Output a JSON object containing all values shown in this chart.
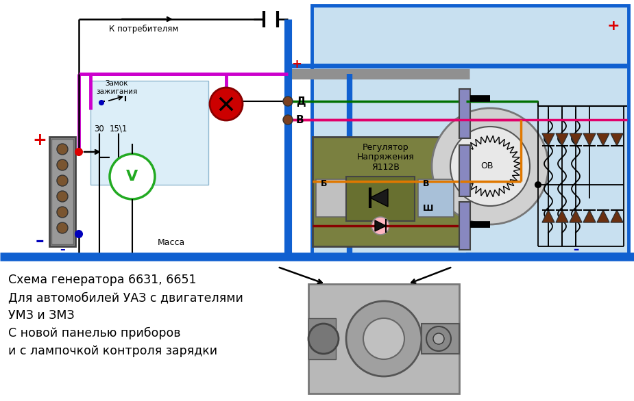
{
  "bg": "#ffffff",
  "diag_bg": "#c8e0f0",
  "panel_bg": "#dceef8",
  "wire_blue": "#1060d0",
  "wire_green": "#007000",
  "wire_pink": "#e0006a",
  "wire_magenta": "#cc00cc",
  "wire_orange": "#e07800",
  "wire_darkred": "#880000",
  "wire_black": "#000000",
  "wire_gray": "#909090",
  "plus_red": "#dd0000",
  "minus_blue": "#0000bb",
  "caption": [
    "Схема генератора 6631, 6651",
    "Для автомобилей УАЗ с двигателями",
    "УМЗ и ЗМЗ",
    "С новой панелью приборов",
    "и с лампочкой контроля зарядки"
  ]
}
